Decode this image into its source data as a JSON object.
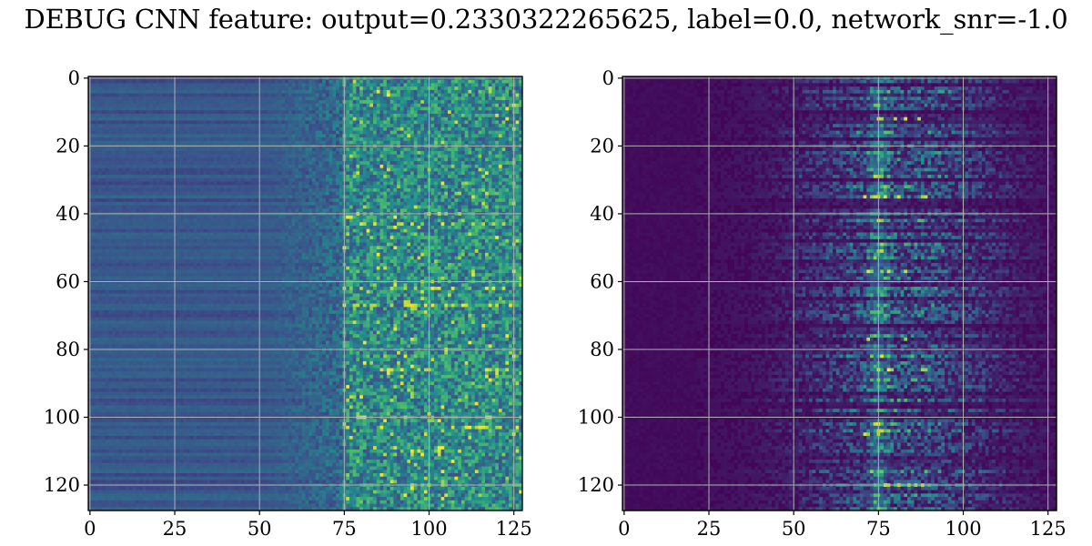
{
  "title": "DEBUG CNN feature: output=0.2330322265625, label=0.0, network_snr=-1.0",
  "colormap": {
    "name": "viridis",
    "stops": [
      "#440154",
      "#3b528b",
      "#21918c",
      "#5ec962",
      "#fde725"
    ]
  },
  "chart_data": [
    {
      "type": "heatmap",
      "panel": "left",
      "title": "",
      "xlabel": "",
      "ylabel": "",
      "xlim": [
        0,
        127
      ],
      "ylim": [
        127,
        0
      ],
      "xticks": [
        "0",
        "25",
        "50",
        "75",
        "100",
        "125"
      ],
      "yticks": [
        "0",
        "20",
        "40",
        "60",
        "80",
        "100",
        "120"
      ],
      "grid": true,
      "description_values": {
        "shape": [
          128,
          128
        ],
        "columns_0_to_50": "uniform mid-dark blue with horizontal row banding",
        "columns_75_to_127": "noisy teal/green texture with scattered yellow hot spots",
        "hot_spots_rows": [
          43,
          62,
          67,
          86,
          103
        ]
      }
    },
    {
      "type": "heatmap",
      "panel": "right",
      "title": "",
      "xlabel": "",
      "ylabel": "",
      "xlim": [
        0,
        127
      ],
      "ylim": [
        127,
        0
      ],
      "xticks": [
        "0",
        "25",
        "50",
        "75",
        "100",
        "125"
      ],
      "yticks": [
        "0",
        "20",
        "40",
        "60",
        "80",
        "100",
        "120"
      ],
      "grid": true,
      "description_values": {
        "shape": [
          128,
          128
        ],
        "columns_0_to_25": "near-zero dark purple",
        "columns_40_to_115": "horizontal streaks of teal/green",
        "bright_ridge_column": 75,
        "hot_spots_rows": [
          12,
          35,
          57,
          77,
          86,
          105,
          120
        ]
      }
    }
  ]
}
